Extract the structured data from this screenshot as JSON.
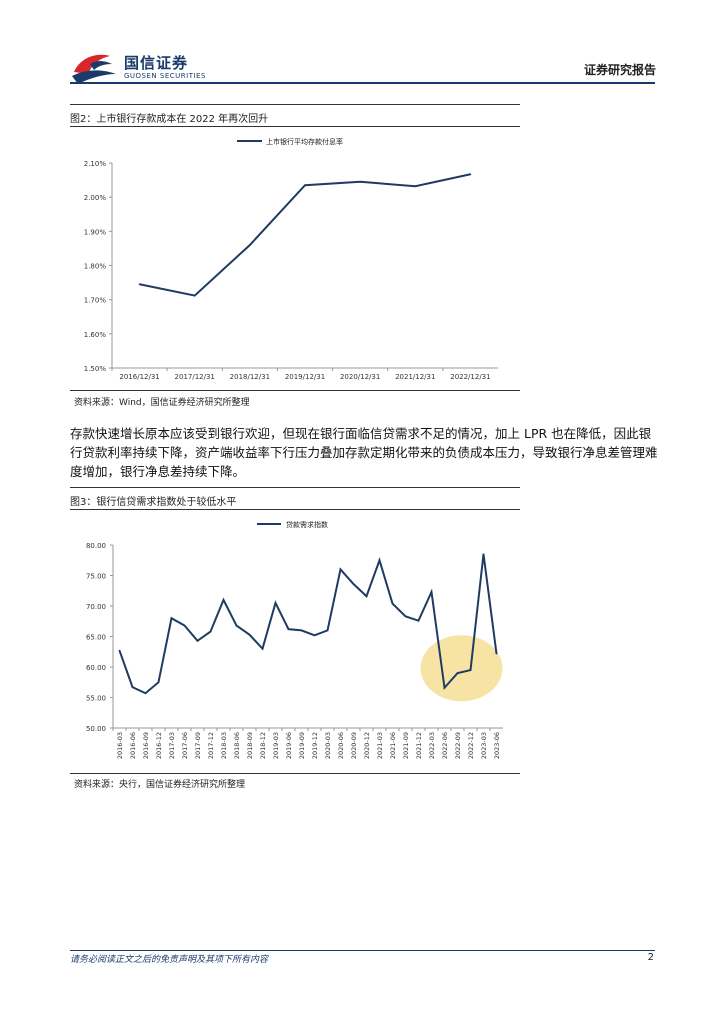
{
  "header": {
    "logo_cn": "国信证券",
    "logo_en": "GUOSEN SECURITIES",
    "report_type": "证券研究报告",
    "colors": {
      "brand_blue": "#1a3a6b",
      "brand_red": "#d9262b"
    }
  },
  "figure2": {
    "title": "图2：上市银行存款成本在 2022 年再次回升",
    "source": "资料来源：Wind，国信证券经济研究所整理",
    "chart_data": {
      "type": "line",
      "title": "",
      "xlabel": "",
      "ylabel": "",
      "x": [
        "2016/12/31",
        "2017/12/31",
        "2018/12/31",
        "2019/12/31",
        "2020/12/31",
        "2021/12/31",
        "2022/12/31"
      ],
      "series": [
        {
          "name": "上市银行平均存款付息率",
          "values": [
            1.745,
            1.712,
            1.86,
            2.035,
            2.045,
            2.032,
            2.067
          ]
        }
      ],
      "ylim": [
        1.5,
        2.1
      ],
      "yticks": [
        "2.10%",
        "2.00%",
        "1.90%",
        "1.80%",
        "1.70%",
        "1.60%",
        "1.50%"
      ],
      "ytick_values": [
        2.1,
        2.0,
        1.9,
        1.8,
        1.7,
        1.6,
        1.5
      ],
      "legend": "top-center",
      "grid": false,
      "line_color": "#1f3b63"
    }
  },
  "paragraph": "存款快速增长原本应该受到银行欢迎，但现在银行面临信贷需求不足的情况，加上 LPR 也在降低，因此银行贷款利率持续下降，资产端收益率下行压力叠加存款定期化带来的负债成本压力，导致银行净息差管理难度增加，银行净息差持续下降。",
  "figure3": {
    "title": "图3：银行信贷需求指数处于较低水平",
    "source": "资料来源：央行，国信证券经济研究所整理",
    "chart_data": {
      "type": "line",
      "title": "",
      "xlabel": "",
      "ylabel": "",
      "x": [
        "2016-03",
        "2016-06",
        "2016-09",
        "2016-12",
        "2017-03",
        "2017-06",
        "2017-09",
        "2017-12",
        "2018-03",
        "2018-06",
        "2018-09",
        "2018-12",
        "2019-03",
        "2019-06",
        "2019-09",
        "2019-12",
        "2020-03",
        "2020-06",
        "2020-09",
        "2020-12",
        "2021-03",
        "2021-06",
        "2021-09",
        "2021-12",
        "2022-03",
        "2022-06",
        "2022-09",
        "2022-12",
        "2023-03",
        "2023-06"
      ],
      "series": [
        {
          "name": "贷款需求指数",
          "values": [
            62.7,
            56.7,
            55.7,
            57.5,
            68.0,
            66.8,
            64.3,
            65.8,
            71.0,
            66.8,
            65.3,
            63.0,
            70.5,
            66.2,
            66.0,
            65.2,
            66.0,
            76.0,
            73.6,
            71.6,
            77.5,
            70.4,
            68.3,
            67.6,
            72.3,
            56.6,
            59.0,
            59.5,
            78.5,
            62.2
          ]
        }
      ],
      "ylim": [
        50,
        80
      ],
      "yticks": [
        "80.00",
        "75.00",
        "70.00",
        "65.00",
        "60.00",
        "55.00",
        "50.00"
      ],
      "ytick_values": [
        80,
        75,
        70,
        65,
        60,
        55,
        50
      ],
      "legend": "top-left",
      "grid": false,
      "line_color": "#1f3b63",
      "highlight_color": "#f5dc8c"
    }
  },
  "footer": {
    "disclaimer": "请务必阅读正文之后的免责声明及其项下所有内容",
    "page": "2"
  }
}
